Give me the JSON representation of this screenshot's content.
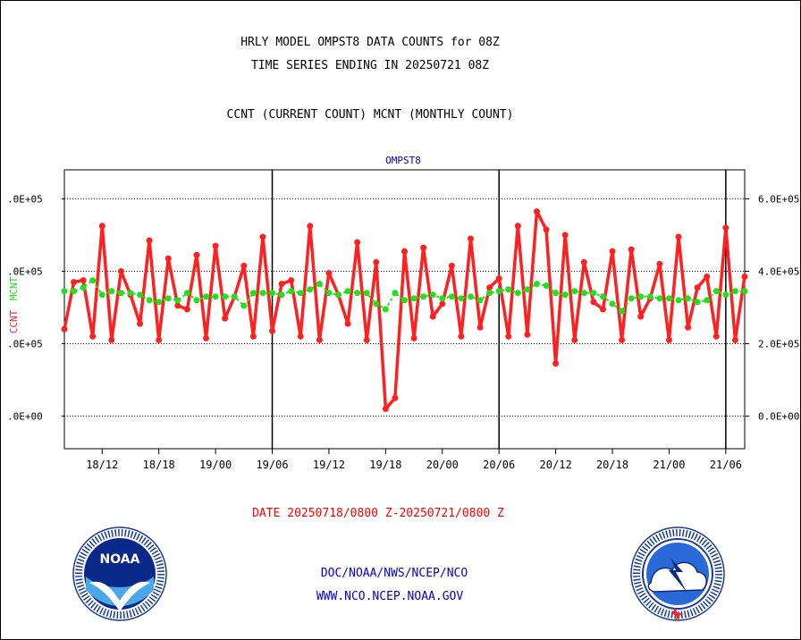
{
  "header": {
    "title_line1": "HRLY MODEL OMPST8 DATA COUNTS for 08Z",
    "title_line2": "TIME SERIES ENDING IN 20250721 08Z",
    "subtitle": "CCNT (CURRENT COUNT) MCNT (MONTHLY COUNT)"
  },
  "footer": {
    "date_range": "DATE 20250718/0800 Z-20250721/0800 Z",
    "link1": "DOC/NOAA/NWS/NCEP/NCO",
    "link2": "WWW.NCO.NCEP.NOAA.GOV",
    "noaa_logo_text": "NOAA",
    "noaa_seal_text": "NATIONAL OCEANIC AND ATMOSPHERIC ADMINISTRATION · U.S. DEPARTMENT OF COMMERCE",
    "nws_seal_text": "NATIONAL WEATHER SERVICE"
  },
  "colors": {
    "ccnt": "#ff2020",
    "mcnt": "#20e020",
    "legend_label": "#0000cc",
    "footer_red": "#ff0000",
    "footer_blue": "#0000cc"
  },
  "chart_data": {
    "type": "line",
    "title": "OMPST8",
    "ylabel_left_ccnt": "CCNT",
    "ylabel_left_mcnt": "MCNT",
    "xlabel": "DATE 20250718/0800 Z-20250721/0800 Z",
    "left_ticks": [
      ".0E+05",
      ".0E+05",
      ".0E+05",
      ".0E+00"
    ],
    "right_ticks": [
      "6.0E+05",
      "4.0E+05",
      "2.0E+05",
      "0.0E+00"
    ],
    "ylim": [
      -90000,
      680000
    ],
    "x_tick_labels": [
      "18/12",
      "18/18",
      "19/00",
      "19/06",
      "19/12",
      "19/18",
      "20/00",
      "20/06",
      "20/12",
      "20/18",
      "21/00",
      "21/06"
    ],
    "x_tick_hours": [
      4,
      10,
      16,
      22,
      28,
      34,
      40,
      46,
      52,
      58,
      64,
      70
    ],
    "day_boundary_hours": [
      22,
      46,
      70
    ],
    "x_range_hours": [
      0,
      72
    ],
    "grid": true,
    "series": [
      {
        "name": "CCNT",
        "values": [
          240000,
          370000,
          375000,
          220000,
          525000,
          210000,
          400000,
          335000,
          255000,
          485000,
          210000,
          435000,
          305000,
          295000,
          445000,
          215000,
          470000,
          270000,
          330000,
          415000,
          220000,
          495000,
          235000,
          365000,
          375000,
          220000,
          525000,
          210000,
          395000,
          335000,
          255000,
          480000,
          210000,
          425000,
          20000,
          50000,
          455000,
          215000,
          465000,
          275000,
          310000,
          415000,
          220000,
          490000,
          245000,
          355000,
          380000,
          220000,
          525000,
          225000,
          565000,
          515000,
          145000,
          500000,
          210000,
          425000,
          315000,
          295000,
          455000,
          210000,
          460000,
          275000,
          325000,
          420000,
          210000,
          495000,
          245000,
          355000,
          385000,
          220000,
          520000,
          210000,
          385000
        ]
      },
      {
        "name": "MCNT",
        "values": [
          345000,
          345000,
          355000,
          375000,
          335000,
          345000,
          340000,
          340000,
          335000,
          320000,
          315000,
          325000,
          320000,
          340000,
          320000,
          330000,
          330000,
          330000,
          330000,
          305000,
          340000,
          340000,
          340000,
          335000,
          345000,
          340000,
          350000,
          365000,
          340000,
          335000,
          345000,
          340000,
          340000,
          310000,
          295000,
          340000,
          320000,
          325000,
          330000,
          335000,
          325000,
          330000,
          325000,
          330000,
          320000,
          340000,
          345000,
          350000,
          340000,
          350000,
          365000,
          360000,
          340000,
          335000,
          345000,
          340000,
          340000,
          330000,
          310000,
          290000,
          325000,
          330000,
          330000,
          325000,
          325000,
          320000,
          325000,
          315000,
          320000,
          345000,
          335000,
          345000,
          345000
        ]
      }
    ]
  }
}
